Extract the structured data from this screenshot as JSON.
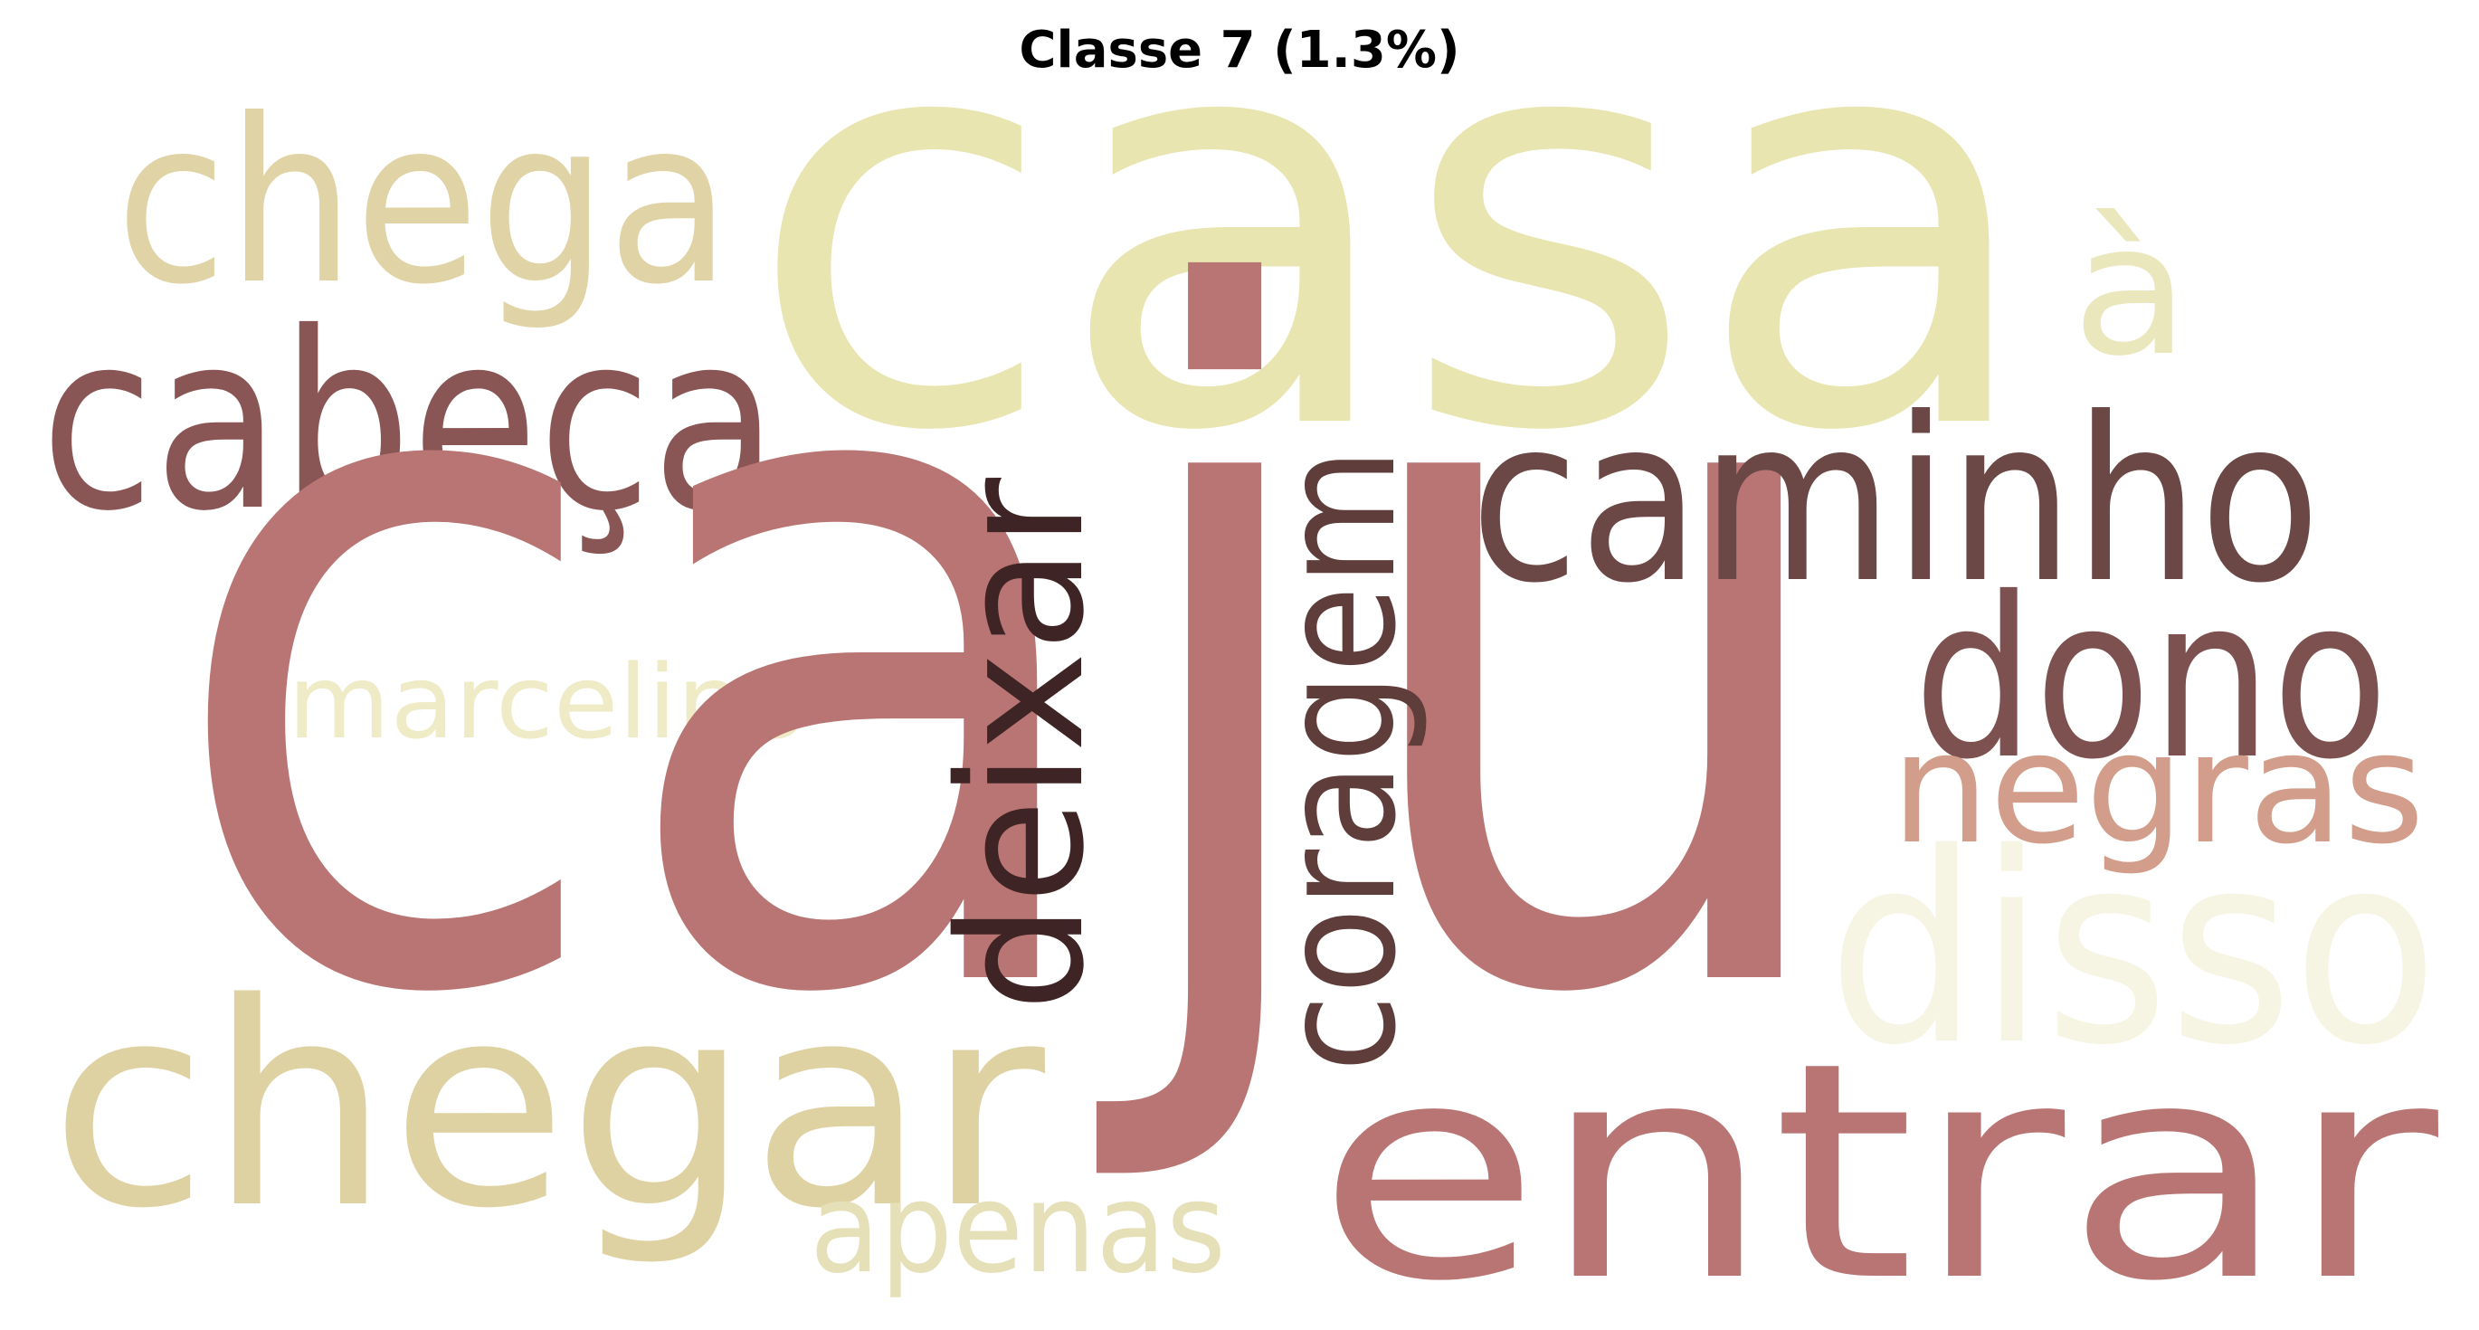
{
  "title": "Classe 7 (1.3%)",
  "words": [
    {
      "text": "caju",
      "color": "#b87573",
      "orientation": "horizontal"
    },
    {
      "text": "casa",
      "color": "#e8e5b0",
      "orientation": "horizontal"
    },
    {
      "text": "chegar",
      "color": "#dfd2a2",
      "orientation": "horizontal"
    },
    {
      "text": "entrar",
      "color": "#b87573",
      "orientation": "horizontal"
    },
    {
      "text": "caminho",
      "color": "#6b4846",
      "orientation": "horizontal"
    },
    {
      "text": "cabeça",
      "color": "#8a5655",
      "orientation": "horizontal"
    },
    {
      "text": "chega",
      "color": "#e0d3a6",
      "orientation": "horizontal"
    },
    {
      "text": "dono",
      "color": "#7d514f",
      "orientation": "horizontal"
    },
    {
      "text": "disso",
      "color": "#f6f5e4",
      "orientation": "horizontal"
    },
    {
      "text": "coragem",
      "color": "#5e3d3b",
      "orientation": "vertical"
    },
    {
      "text": "deixar",
      "color": "#3e2424",
      "orientation": "vertical"
    },
    {
      "text": "negras",
      "color": "#d29d8a",
      "orientation": "horizontal"
    },
    {
      "text": "à",
      "color": "#ebe7bd",
      "orientation": "horizontal"
    },
    {
      "text": "apenas",
      "color": "#e6e0b8",
      "orientation": "horizontal"
    },
    {
      "text": "marcelino",
      "color": "#eeebc6",
      "orientation": "horizontal"
    }
  ]
}
